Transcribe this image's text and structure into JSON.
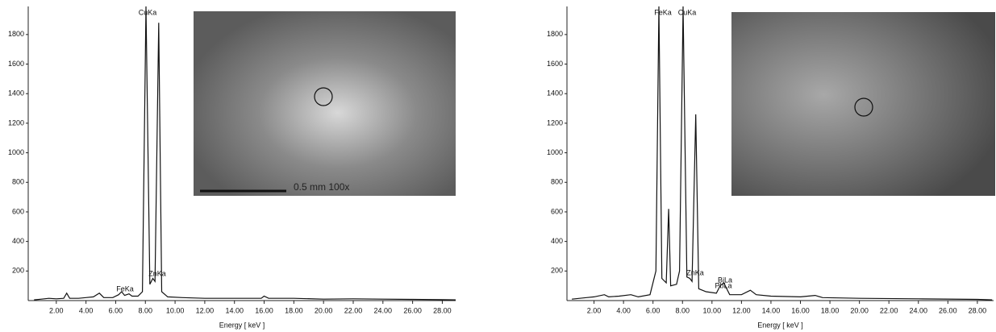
{
  "chart_data": [
    {
      "type": "line",
      "xlabel": "Energy [ keV ]",
      "color": "#111111",
      "x": [
        0.5,
        1.0,
        1.5,
        2.0,
        2.5,
        2.7,
        2.9,
        3.5,
        4.0,
        4.5,
        4.9,
        5.2,
        5.8,
        6.2,
        6.4,
        6.6,
        6.9,
        7.1,
        7.5,
        7.8,
        8.04,
        8.3,
        8.5,
        8.65,
        8.9,
        9.1,
        9.5,
        10.5,
        12,
        14,
        15.8,
        16.0,
        16.3,
        17.5,
        18,
        20,
        22,
        24,
        26,
        28,
        28.9
      ],
      "values": [
        5,
        10,
        15,
        12,
        15,
        50,
        15,
        15,
        20,
        25,
        50,
        20,
        20,
        40,
        60,
        35,
        45,
        30,
        30,
        60,
        1990,
        110,
        150,
        130,
        1880,
        60,
        25,
        20,
        15,
        15,
        15,
        30,
        15,
        15,
        15,
        10,
        12,
        10,
        8,
        6,
        5
      ],
      "xlim": [
        0,
        28.9
      ],
      "ylim": [
        0,
        1990
      ],
      "yticks": [
        200,
        400,
        600,
        800,
        1000,
        1200,
        1400,
        1600,
        1800
      ],
      "xticks": [
        {
          "value": 2,
          "label": "2.00"
        },
        {
          "value": 4,
          "label": "4.00"
        },
        {
          "value": 6,
          "label": "6.00"
        },
        {
          "value": 8,
          "label": "8.00"
        },
        {
          "value": 10,
          "label": "10.00"
        },
        {
          "value": 12,
          "label": "12.00"
        },
        {
          "value": 14,
          "label": "14.00"
        },
        {
          "value": 16,
          "label": "16.00"
        },
        {
          "value": 18,
          "label": "18.00"
        },
        {
          "value": 20,
          "label": "20.00"
        },
        {
          "value": 22,
          "label": "22.00"
        },
        {
          "value": 24,
          "label": "24.00"
        },
        {
          "value": 26,
          "label": "26.00"
        },
        {
          "value": 28,
          "label": "28.00"
        }
      ],
      "annotations": [
        "CuKa",
        "ZnKa",
        "FeKa"
      ],
      "inset_caption": "0.5 mm  100x"
    },
    {
      "type": "line",
      "xlabel": "Energy [ keV ]",
      "color": "#111111",
      "x": [
        0.5,
        1.5,
        2.0,
        2.7,
        3.0,
        3.7,
        4.5,
        5.0,
        5.8,
        6.2,
        6.4,
        6.6,
        6.9,
        7.06,
        7.2,
        7.6,
        7.8,
        8.04,
        8.3,
        8.5,
        8.65,
        8.9,
        9.1,
        9.6,
        10.3,
        10.55,
        10.8,
        11.2,
        12.0,
        12.6,
        13.0,
        14.0,
        16.0,
        17.0,
        17.5,
        20,
        24,
        28,
        29.0
      ],
      "values": [
        10,
        20,
        25,
        40,
        25,
        30,
        40,
        25,
        40,
        200,
        1990,
        150,
        120,
        620,
        100,
        110,
        200,
        1990,
        160,
        150,
        130,
        1260,
        80,
        60,
        50,
        100,
        120,
        40,
        40,
        70,
        40,
        30,
        25,
        35,
        20,
        15,
        12,
        8,
        5
      ],
      "xlim": [
        0,
        29.1
      ],
      "ylim": [
        0,
        1990
      ],
      "yticks": [
        200,
        400,
        600,
        800,
        1000,
        1200,
        1400,
        1600,
        1800
      ],
      "xticks": [
        {
          "value": 2,
          "label": "2.00"
        },
        {
          "value": 4,
          "label": "4.00"
        },
        {
          "value": 6,
          "label": "6.00"
        },
        {
          "value": 8,
          "label": "8.00"
        },
        {
          "value": 10,
          "label": "10.00"
        },
        {
          "value": 12,
          "label": "12.00"
        },
        {
          "value": 14,
          "label": "14.00"
        },
        {
          "value": 16,
          "label": "16.00"
        },
        {
          "value": 18,
          "label": "18.00"
        },
        {
          "value": 20,
          "label": "20.00"
        },
        {
          "value": 22,
          "label": "22.00"
        },
        {
          "value": 24,
          "label": "24.00"
        },
        {
          "value": 26,
          "label": "26.00"
        },
        {
          "value": 28,
          "label": "28.00"
        }
      ],
      "annotations": [
        "FeKa",
        "CuKa",
        "ZnKa",
        "BiLa",
        "PbLa"
      ]
    }
  ]
}
